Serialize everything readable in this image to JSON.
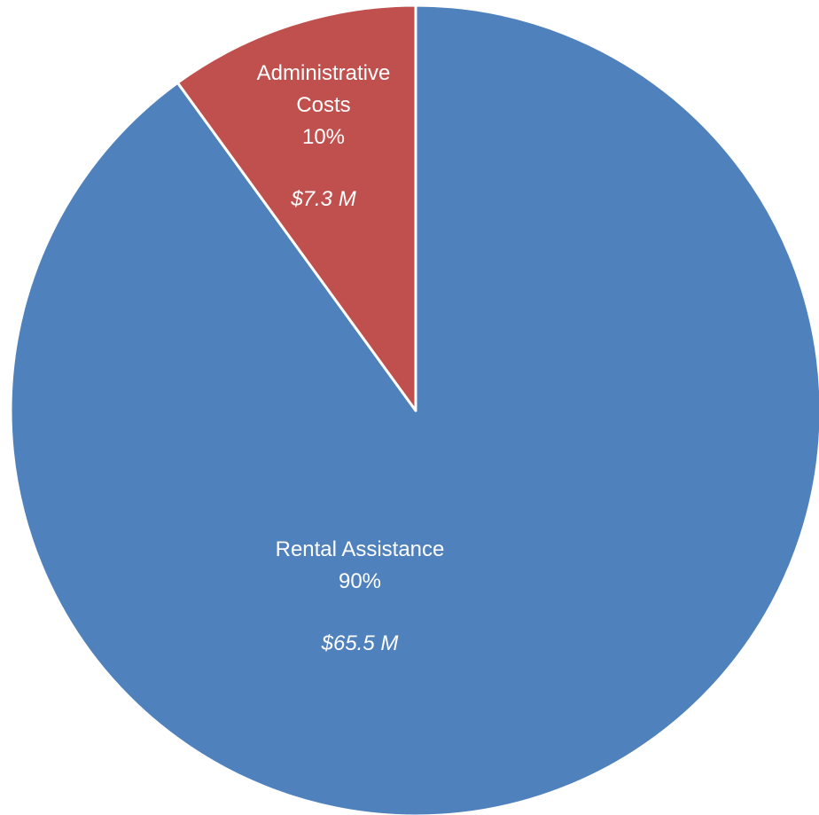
{
  "chart_data": {
    "type": "pie",
    "categories": [
      "Rental Assistance",
      "Administrative Costs"
    ],
    "values": [
      90,
      10
    ],
    "value_labels": [
      "90%",
      "10%"
    ],
    "amounts": [
      65.5,
      7.3
    ],
    "amount_labels": [
      "$65.5 M",
      "$7.3 M"
    ],
    "colors": [
      "#4f81bd",
      "#c0504d"
    ]
  }
}
